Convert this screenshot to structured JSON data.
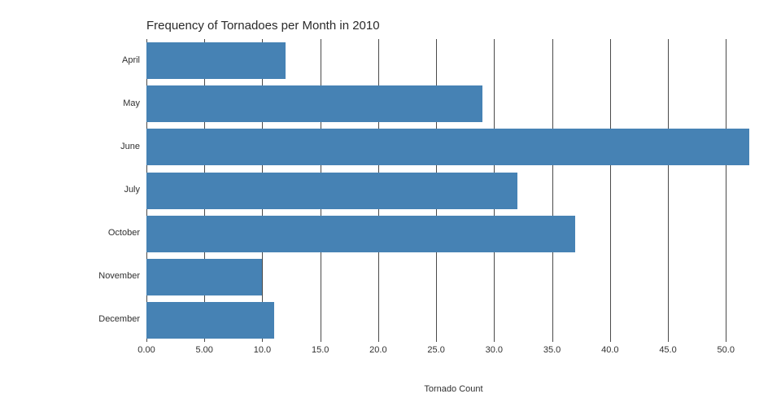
{
  "chart_data": {
    "type": "bar",
    "orientation": "horizontal",
    "title": "Frequency of Tornadoes per Month in 2010",
    "xlabel": "Tornado Count",
    "ylabel": "",
    "categories": [
      "April",
      "May",
      "June",
      "July",
      "October",
      "November",
      "December"
    ],
    "values": [
      12,
      29,
      52,
      32,
      37,
      10,
      11
    ],
    "xlim": [
      0,
      53
    ],
    "xticks": [
      0,
      5,
      10,
      15,
      20,
      25,
      30,
      35,
      40,
      45,
      50
    ],
    "xtick_labels": [
      "0.00",
      "5.00",
      "10.0",
      "15.0",
      "20.0",
      "25.0",
      "30.0",
      "35.0",
      "40.0",
      "45.0",
      "50.0"
    ],
    "grid": "vertical",
    "legend": "none",
    "bar_color": "#4682b4",
    "grid_color": "#4a4a4a",
    "text_color": "#303030",
    "background": "#ffffff"
  }
}
